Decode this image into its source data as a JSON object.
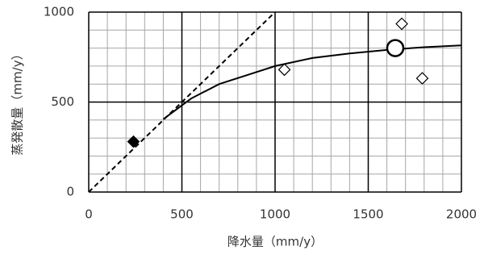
{
  "chart_data": {
    "type": "scatter",
    "x_label": "降水量（mm/y）",
    "y_label": "蒸発散量（mm/y）",
    "xlim": [
      0,
      2000
    ],
    "ylim": [
      0,
      1000
    ],
    "xticks": [
      0,
      500,
      1000,
      1500,
      2000
    ],
    "yticks": [
      0,
      500,
      1000
    ],
    "grid": true,
    "minor_grid": 100,
    "series": [
      {
        "marker": "dashed-line",
        "color": "#000000",
        "x": [
          0,
          1000
        ],
        "values": [
          0,
          1000
        ]
      },
      {
        "marker": "line",
        "color": "#000000",
        "x": [
          400,
          550,
          700,
          850,
          1000,
          1200,
          1400,
          1600,
          1800,
          2000
        ],
        "values": [
          405,
          520,
          600,
          650,
          700,
          745,
          770,
          790,
          805,
          815
        ]
      },
      {
        "marker": "filled-diamond",
        "color": "#000000",
        "x": [
          240
        ],
        "values": [
          280
        ]
      },
      {
        "marker": "open-diamond",
        "color": "#000000",
        "x": [
          1050,
          1680,
          1790
        ],
        "values": [
          680,
          935,
          632
        ]
      },
      {
        "marker": "open-circle",
        "color": "#000000",
        "x": [
          1645
        ],
        "values": [
          800
        ]
      }
    ]
  }
}
